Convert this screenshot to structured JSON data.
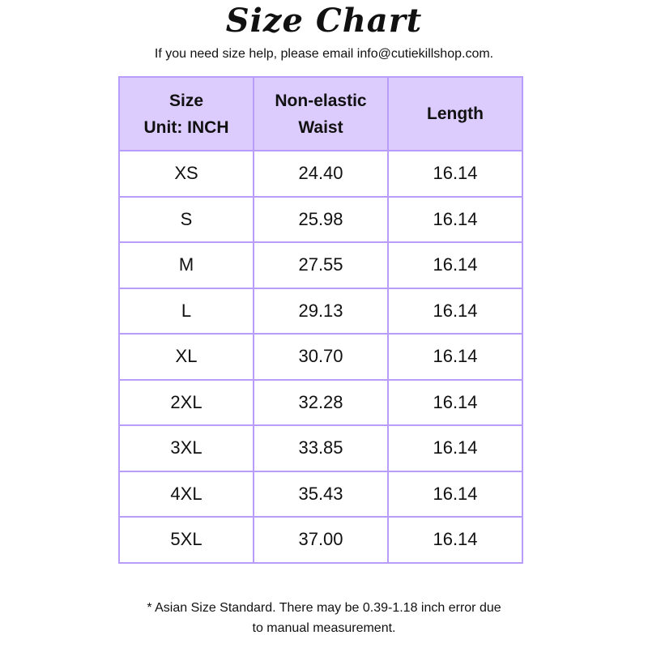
{
  "title": "Size Chart",
  "subtitle": "If you need size help, please email info@cutiekillshop.com.",
  "colors": {
    "header_bg": "#dccbfd",
    "border": "#b99dfb"
  },
  "table": {
    "headers": [
      {
        "line1": "Size",
        "line2": "Unit: INCH"
      },
      {
        "line1": "Non-elastic",
        "line2": "Waist"
      },
      {
        "line1": "Length",
        "line2": ""
      }
    ],
    "rows": [
      [
        "XS",
        "24.40",
        "16.14"
      ],
      [
        "S",
        "25.98",
        "16.14"
      ],
      [
        "M",
        "27.55",
        "16.14"
      ],
      [
        "L",
        "29.13",
        "16.14"
      ],
      [
        "XL",
        "30.70",
        "16.14"
      ],
      [
        "2XL",
        "32.28",
        "16.14"
      ],
      [
        "3XL",
        "33.85",
        "16.14"
      ],
      [
        "4XL",
        "35.43",
        "16.14"
      ],
      [
        "5XL",
        "37.00",
        "16.14"
      ]
    ]
  },
  "footnote": {
    "line1": "* Asian Size Standard. There may be 0.39-1.18 inch error due",
    "line2": "to manual measurement."
  }
}
